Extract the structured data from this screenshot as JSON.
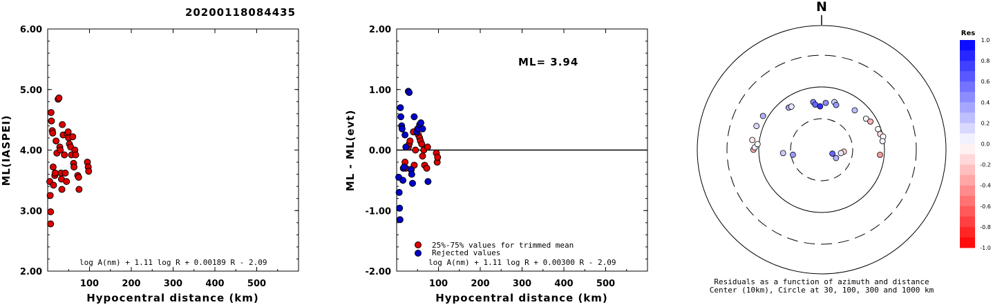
{
  "title": "20200118084435",
  "chart_data": [
    {
      "type": "scatter",
      "xlabel": "Hypocentral distance (km)",
      "ylabel": "ML(IASPEI)",
      "xlim": [
        0,
        600
      ],
      "ylim": [
        2.0,
        6.0
      ],
      "x_ticks": [
        "100",
        "200",
        "300",
        "400",
        "500"
      ],
      "y_ticks": [
        "6.00",
        "5.00",
        "4.00",
        "3.00",
        "2.00"
      ],
      "formula": "log A(nm) + 1.11 log R + 0.00189 R - 2.09",
      "points": [
        [
          5,
          3.48
        ],
        [
          6,
          3.25
        ],
        [
          7,
          2.98
        ],
        [
          7,
          2.78
        ],
        [
          8,
          4.62
        ],
        [
          9,
          4.48
        ],
        [
          11,
          4.32
        ],
        [
          12,
          4.28
        ],
        [
          13,
          3.72
        ],
        [
          14,
          3.42
        ],
        [
          17,
          3.58
        ],
        [
          18,
          3.62
        ],
        [
          20,
          4.15
        ],
        [
          22,
          3.95
        ],
        [
          25,
          4.84
        ],
        [
          27,
          4.86
        ],
        [
          29,
          4.05
        ],
        [
          30,
          4.0
        ],
        [
          32,
          3.62
        ],
        [
          33,
          3.52
        ],
        [
          34,
          3.35
        ],
        [
          35,
          4.42
        ],
        [
          37,
          4.25
        ],
        [
          40,
          3.92
        ],
        [
          42,
          3.62
        ],
        [
          45,
          3.48
        ],
        [
          47,
          4.27
        ],
        [
          49,
          4.3
        ],
        [
          50,
          4.2
        ],
        [
          52,
          4.1
        ],
        [
          55,
          4.05
        ],
        [
          57,
          3.92
        ],
        [
          60,
          4.22
        ],
        [
          62,
          3.78
        ],
        [
          63,
          3.72
        ],
        [
          65,
          4.0
        ],
        [
          67,
          3.92
        ],
        [
          72,
          3.58
        ],
        [
          74,
          3.55
        ],
        [
          75,
          3.35
        ],
        [
          95,
          3.8
        ],
        [
          97,
          3.72
        ],
        [
          98,
          3.65
        ]
      ]
    },
    {
      "type": "scatter",
      "xlabel": "Hypocentral distance (km)",
      "ylabel": "ML - ML(evt)",
      "xlim": [
        0,
        600
      ],
      "ylim": [
        -2.0,
        2.0
      ],
      "x_ticks": [
        "100",
        "200",
        "300",
        "400",
        "500"
      ],
      "y_ticks": [
        "2.00",
        "1.00",
        "0.00",
        "-1.00",
        "-2.00"
      ],
      "ml_label": "ML= 3.94",
      "formula": "log A(nm) + 1.11 log R + 0.00300 R - 2.09",
      "legend": [
        "25%-75% values for trimmed mean",
        "Rejected values"
      ],
      "series": [
        {
          "name": "25%-75% values for trimmed mean",
          "color": "#dd0000",
          "points": [
            [
              20,
              -0.2
            ],
            [
              22,
              -0.3
            ],
            [
              28,
              0.05
            ],
            [
              30,
              0.1
            ],
            [
              32,
              0.15
            ],
            [
              35,
              -0.32
            ],
            [
              40,
              0.3
            ],
            [
              42,
              -0.25
            ],
            [
              45,
              0.0
            ],
            [
              50,
              0.35
            ],
            [
              52,
              0.25
            ],
            [
              55,
              0.2
            ],
            [
              57,
              0.15
            ],
            [
              60,
              0.1
            ],
            [
              62,
              -0.1
            ],
            [
              65,
              0.0
            ],
            [
              67,
              -0.25
            ],
            [
              72,
              -0.3
            ],
            [
              74,
              0.05
            ],
            [
              95,
              -0.05
            ],
            [
              97,
              -0.2
            ],
            [
              98,
              -0.12
            ]
          ]
        },
        {
          "name": "Rejected values",
          "color": "#0000cc",
          "points": [
            [
              5,
              -0.45
            ],
            [
              6,
              -0.7
            ],
            [
              7,
              -0.96
            ],
            [
              8,
              -1.15
            ],
            [
              9,
              0.7
            ],
            [
              10,
              0.55
            ],
            [
              12,
              0.4
            ],
            [
              13,
              0.35
            ],
            [
              15,
              -0.5
            ],
            [
              16,
              -0.3
            ],
            [
              18,
              -0.28
            ],
            [
              20,
              0.25
            ],
            [
              22,
              0.05
            ],
            [
              28,
              0.97
            ],
            [
              30,
              0.95
            ],
            [
              34,
              -0.32
            ],
            [
              36,
              -0.4
            ],
            [
              38,
              -0.55
            ],
            [
              42,
              0.55
            ],
            [
              48,
              0.3
            ],
            [
              52,
              0.35
            ],
            [
              55,
              0.42
            ],
            [
              58,
              0.45
            ],
            [
              62,
              0.35
            ],
            [
              75,
              -0.52
            ]
          ]
        }
      ]
    },
    {
      "type": "scatter",
      "title": "Residuals as a function of azimuth and distance",
      "subtitle": "Center (10km), Circle at 30, 100, 300 and 1000 km",
      "north_label": "N",
      "colorbar": {
        "title": "Res",
        "ticks": [
          "1.0",
          "0.8",
          "0.6",
          "0.4",
          "0.2",
          "0.0",
          "-0.2",
          "-0.4",
          "-0.6",
          "-0.8",
          "-1.0"
        ]
      },
      "stations": [
        {
          "az": 290,
          "dist_km": 125,
          "res": 0.15
        },
        {
          "az": 300,
          "dist_km": 118,
          "res": 0.3
        },
        {
          "az": 322,
          "dist_km": 70,
          "res": 0.35
        },
        {
          "az": 325,
          "dist_km": 68,
          "res": 0.1
        },
        {
          "az": 350,
          "dist_km": 58,
          "res": 0.5
        },
        {
          "az": 352,
          "dist_km": 52,
          "res": 0.6
        },
        {
          "az": 358,
          "dist_km": 48,
          "res": 0.8
        },
        {
          "az": 5,
          "dist_km": 55,
          "res": 0.45
        },
        {
          "az": 15,
          "dist_km": 60,
          "res": 0.2
        },
        {
          "az": 18,
          "dist_km": 55,
          "res": 0.4
        },
        {
          "az": 40,
          "dist_km": 65,
          "res": 0.25
        },
        {
          "az": 55,
          "dist_km": 72,
          "res": 0.05
        },
        {
          "az": 60,
          "dist_km": 78,
          "res": -0.3
        },
        {
          "az": 70,
          "dist_km": 90,
          "res": 0.0
        },
        {
          "az": 75,
          "dist_km": 92,
          "res": -0.15
        },
        {
          "az": 78,
          "dist_km": 100,
          "res": 0.0
        },
        {
          "az": 82,
          "dist_km": 95,
          "res": 0.05
        },
        {
          "az": 95,
          "dist_km": 85,
          "res": -0.4
        },
        {
          "az": 95,
          "dist_km": 22,
          "res": -0.2
        },
        {
          "az": 100,
          "dist_km": 20,
          "res": 0.1
        },
        {
          "az": 110,
          "dist_km": 15,
          "res": 0.6
        },
        {
          "az": 120,
          "dist_km": 18,
          "res": 0.3
        },
        {
          "az": 260,
          "dist_km": 28,
          "res": 0.4
        },
        {
          "az": 265,
          "dist_km": 40,
          "res": 0.2
        },
        {
          "az": 270,
          "dist_km": 120,
          "res": -0.3
        },
        {
          "az": 272,
          "dist_km": 115,
          "res": 0.05
        },
        {
          "az": 275,
          "dist_km": 105,
          "res": 0.0
        },
        {
          "az": 278,
          "dist_km": 128,
          "res": -0.1
        }
      ]
    }
  ]
}
